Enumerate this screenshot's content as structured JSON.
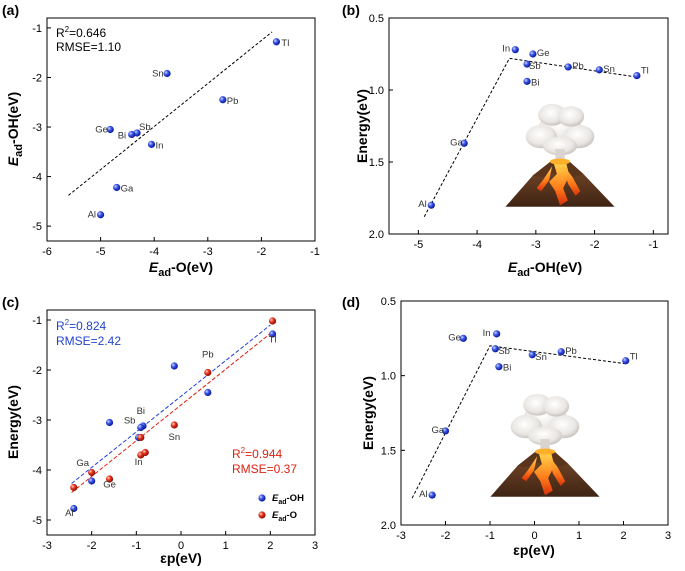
{
  "colors": {
    "blue": "#1f3fdc",
    "red": "#e02010",
    "text_blue": "#2244cc",
    "text_red": "#dd2211"
  },
  "chart_data": [
    {
      "panel": "(a)",
      "type": "scatter",
      "xlabel_main": "E",
      "xlabel_sub": "ad",
      "xlabel_rest": "-O(eV)",
      "ylabel_main": "E",
      "ylabel_sub": "ad",
      "ylabel_rest": "-OH(eV)",
      "xlim": [
        -6,
        -1
      ],
      "ylim": [
        -5.3,
        -0.8
      ],
      "xticks": [
        "-6",
        "-5",
        "-4",
        "-3",
        "-2",
        "-1"
      ],
      "yticks": [
        "-1",
        "-2",
        "-3",
        "-4",
        "-5"
      ],
      "stats": {
        "r2_prefix": "R",
        "r2_sup": "2",
        "r2_value": "=0.646",
        "rmse": "RMSE=1.10"
      },
      "fit_line": {
        "x": [
          -5.6,
          -1.8
        ],
        "y": [
          -4.38,
          -1.08
        ]
      },
      "points": [
        {
          "label": "Tl",
          "x": -1.72,
          "y": -1.28
        },
        {
          "label": "Sn",
          "x": -3.76,
          "y": -1.92
        },
        {
          "label": "Pb",
          "x": -2.72,
          "y": -2.45
        },
        {
          "label": "Ge",
          "x": -4.82,
          "y": -3.05
        },
        {
          "label": "Sb",
          "x": -4.32,
          "y": -3.12
        },
        {
          "label": "Bi",
          "x": -4.42,
          "y": -3.15
        },
        {
          "label": "In",
          "x": -4.05,
          "y": -3.35
        },
        {
          "label": "Ga",
          "x": -4.7,
          "y": -4.22
        },
        {
          "label": "Al",
          "x": -5.0,
          "y": -4.77
        }
      ]
    },
    {
      "panel": "(b)",
      "type": "scatter",
      "xlabel_main": "E",
      "xlabel_sub": "ad",
      "xlabel_rest": "-OH(eV)",
      "ylabel": "Energy(eV)",
      "xlim": [
        -5.5,
        -0.75
      ],
      "ylim": [
        0.5,
        2.0
      ],
      "yinverted": true,
      "xticks": [
        "-5",
        "-4",
        "-3",
        "-2",
        "-1"
      ],
      "yticks": [
        "0.5",
        "1.0",
        "1.5",
        "2.0"
      ],
      "volcano_line": {
        "x": [
          -4.9,
          -3.45,
          -1.28
        ],
        "y": [
          1.88,
          0.78,
          0.91
        ]
      },
      "points": [
        {
          "label": "In",
          "x": -3.35,
          "y": 0.72
        },
        {
          "label": "Ge",
          "x": -3.05,
          "y": 0.75
        },
        {
          "label": "Sb",
          "x": -3.15,
          "y": 0.82
        },
        {
          "label": "Pb",
          "x": -2.45,
          "y": 0.84
        },
        {
          "label": "Sn",
          "x": -1.92,
          "y": 0.86
        },
        {
          "label": "Tl",
          "x": -1.28,
          "y": 0.9
        },
        {
          "label": "Bi",
          "x": -3.15,
          "y": 0.94
        },
        {
          "label": "Ga",
          "x": -4.22,
          "y": 1.37
        },
        {
          "label": "Al",
          "x": -4.78,
          "y": 1.8
        }
      ]
    },
    {
      "panel": "(c)",
      "type": "scatter",
      "xlabel": "εp(eV)",
      "ylabel": "Energy(eV)",
      "xlim": [
        -3,
        3
      ],
      "ylim": [
        -5.3,
        -0.8
      ],
      "xticks": [
        "-3",
        "-2",
        "-1",
        "0",
        "1",
        "2",
        "3"
      ],
      "yticks": [
        "-1",
        "-2",
        "-3",
        "-4",
        "-5"
      ],
      "stats_blue": {
        "r2_prefix": "R",
        "r2_sup": "2",
        "r2_value": "=0.824",
        "rmse": "RMSE=2.42"
      },
      "stats_red": {
        "r2_prefix": "R",
        "r2_sup": "2",
        "r2_value": "=0.944",
        "rmse": "RMSE=0.37"
      },
      "fit_blue": {
        "x": [
          -2.45,
          2.0
        ],
        "y": [
          -4.27,
          -1.1
        ]
      },
      "fit_red": {
        "x": [
          -2.45,
          2.0
        ],
        "y": [
          -4.45,
          -1.27
        ]
      },
      "legend": [
        {
          "main": "E",
          "sub": "ad",
          "rest": "-OH",
          "color": "#1f3fdc"
        },
        {
          "main": "E",
          "sub": "ad",
          "rest": "-O",
          "color": "#e02010"
        }
      ],
      "series": [
        {
          "name": "Ead-OH",
          "points": [
            {
              "x": 2.05,
              "y": -1.28
            },
            {
              "x": -0.15,
              "y": -1.92
            },
            {
              "x": 0.6,
              "y": -2.45
            },
            {
              "x": -1.6,
              "y": -3.05
            },
            {
              "x": -0.85,
              "y": -3.12
            },
            {
              "x": -0.9,
              "y": -3.15
            },
            {
              "x": -0.95,
              "y": -3.35
            },
            {
              "x": -2.0,
              "y": -4.22
            },
            {
              "x": -2.4,
              "y": -4.77
            }
          ]
        },
        {
          "name": "Ead-O",
          "points": [
            {
              "x": 2.05,
              "y": -1.02
            },
            {
              "x": 0.6,
              "y": -2.05
            },
            {
              "x": -0.15,
              "y": -3.1
            },
            {
              "x": -0.9,
              "y": -3.35
            },
            {
              "x": -0.9,
              "y": -3.7
            },
            {
              "x": -0.8,
              "y": -3.65
            },
            {
              "x": -2.0,
              "y": -4.05
            },
            {
              "x": -1.6,
              "y": -4.18
            },
            {
              "x": -2.4,
              "y": -4.35
            }
          ]
        }
      ],
      "labels": [
        {
          "label": "Tl",
          "x": 2.05,
          "y": -1.45
        },
        {
          "label": "Pb",
          "x": 0.6,
          "y": -1.75
        },
        {
          "label": "Bi",
          "x": -0.9,
          "y": -2.88
        },
        {
          "label": "Sb",
          "x": -1.15,
          "y": -3.07
        },
        {
          "label": "Sn",
          "x": -0.15,
          "y": -3.4
        },
        {
          "label": "In",
          "x": -0.95,
          "y": -3.9
        },
        {
          "label": "Ga",
          "x": -2.2,
          "y": -3.92
        },
        {
          "label": "Ge",
          "x": -1.6,
          "y": -4.35
        },
        {
          "label": "Al",
          "x": -2.5,
          "y": -4.92
        }
      ]
    },
    {
      "panel": "(d)",
      "type": "scatter",
      "xlabel": "εp(eV)",
      "ylabel": "Energy(eV)",
      "xlim": [
        -3,
        3
      ],
      "ylim": [
        0.5,
        2.0
      ],
      "yinverted": true,
      "xticks": [
        "-3",
        "-2",
        "-1",
        "0",
        "1",
        "2",
        "3"
      ],
      "yticks": [
        "0.5",
        "1.0",
        "1.5",
        "2.0"
      ],
      "volcano_line": {
        "x": [
          -2.75,
          -1.0,
          2.05
        ],
        "y": [
          1.82,
          0.8,
          0.92
        ]
      },
      "points": [
        {
          "label": "Ge",
          "x": -1.6,
          "y": 0.75
        },
        {
          "label": "In",
          "x": -0.85,
          "y": 0.72
        },
        {
          "label": "Sb",
          "x": -0.88,
          "y": 0.82
        },
        {
          "label": "Pb",
          "x": 0.6,
          "y": 0.84
        },
        {
          "label": "Sn",
          "x": -0.05,
          "y": 0.86
        },
        {
          "label": "Tl",
          "x": 2.05,
          "y": 0.9
        },
        {
          "label": "Bi",
          "x": -0.8,
          "y": 0.94
        },
        {
          "label": "Ga",
          "x": -2.0,
          "y": 1.37
        },
        {
          "label": "Al",
          "x": -2.3,
          "y": 1.8
        }
      ]
    }
  ]
}
